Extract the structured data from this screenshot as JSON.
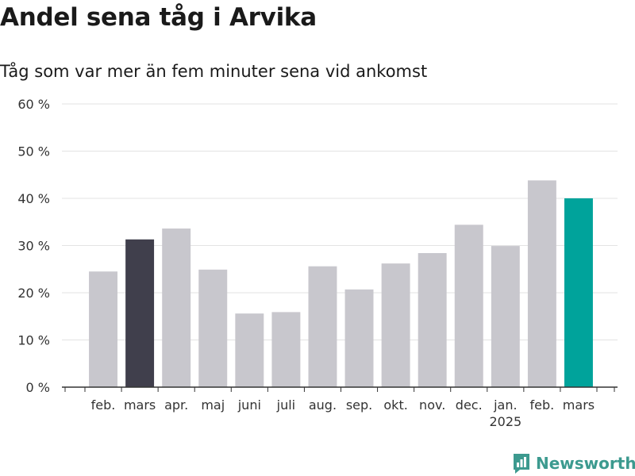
{
  "title": "Andel sena tåg i Arvika",
  "subtitle": "Tåg som var mer än fem minuter sena vid ankomst",
  "brand": {
    "name": "Newsworthy",
    "icon": "newsworthy-logo-icon"
  },
  "colors": {
    "default_bar": "#c8c7cd",
    "previous_year_bar": "#403f4c",
    "current_bar": "#00a39b",
    "grid": "#e3e3e3",
    "axis": "#333333",
    "text": "#333333",
    "brand": "#3c9a8f"
  },
  "chart_data": {
    "type": "bar",
    "categories": [
      "feb.",
      "mars",
      "apr.",
      "maj",
      "juni",
      "juli",
      "aug.",
      "sep.",
      "okt.",
      "nov.",
      "dec.",
      "jan.",
      "feb.",
      "mars"
    ],
    "year_labels": [
      "",
      "",
      "",
      "",
      "",
      "",
      "",
      "",
      "",
      "",
      "",
      "2025",
      "",
      ""
    ],
    "values": [
      24.5,
      31.3,
      33.6,
      24.9,
      15.6,
      15.9,
      25.6,
      20.7,
      26.2,
      28.4,
      34.4,
      29.9,
      43.8,
      40.0
    ],
    "highlight": [
      "default",
      "previous_year",
      "default",
      "default",
      "default",
      "default",
      "default",
      "default",
      "default",
      "default",
      "default",
      "default",
      "default",
      "current"
    ],
    "ylim": [
      0,
      60
    ],
    "yticks": [
      0,
      10,
      20,
      30,
      40,
      50,
      60
    ],
    "ytick_labels": [
      "0 %",
      "10 %",
      "20 %",
      "30 %",
      "40 %",
      "50 %",
      "60 %"
    ],
    "grid": true,
    "xlabel": "",
    "ylabel": ""
  }
}
